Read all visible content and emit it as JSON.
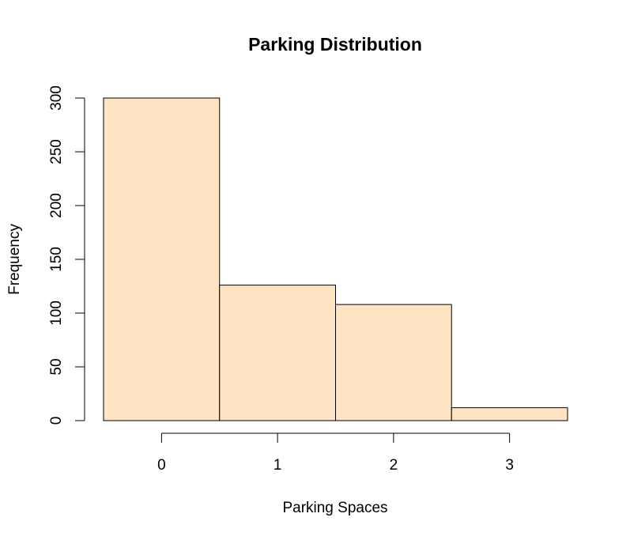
{
  "chart_data": {
    "type": "bar",
    "title": "Parking Distribution",
    "xlabel": "Parking Spaces",
    "ylabel": "Frequency",
    "categories": [
      "0",
      "1",
      "2",
      "3"
    ],
    "bins": [
      [
        -0.5,
        0.5
      ],
      [
        0.5,
        1.5
      ],
      [
        1.5,
        2.5
      ],
      [
        2.5,
        3.5
      ]
    ],
    "values": [
      300,
      126,
      108,
      12
    ],
    "x_ticks": [
      0,
      1,
      2,
      3
    ],
    "y_ticks": [
      0,
      50,
      100,
      150,
      200,
      250,
      300
    ],
    "xlim": [
      -0.5,
      3.5
    ],
    "ylim": [
      0,
      300
    ],
    "grid": false,
    "bar_color": "#FFE4C4"
  }
}
